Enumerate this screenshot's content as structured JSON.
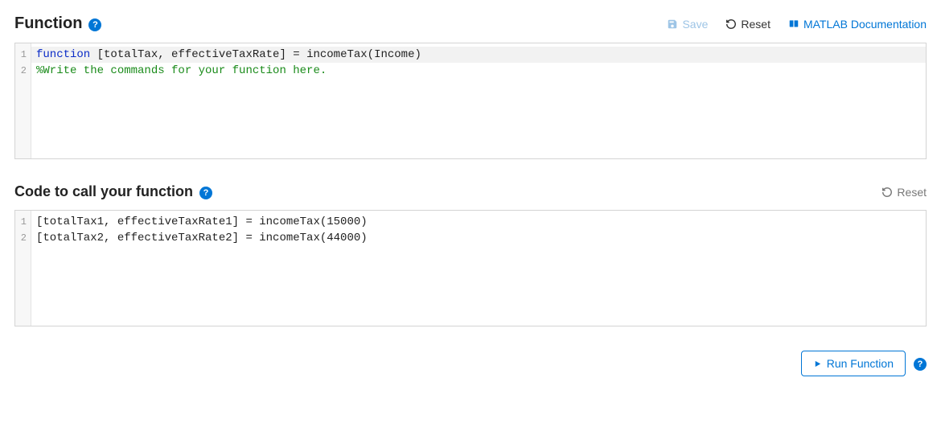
{
  "colors": {
    "link": "#0076d6",
    "mutedLink": "#9ec5e6",
    "textMuted": "#777777",
    "border": "#d4d4d4",
    "gutterBg": "#f7f7f7",
    "activeLine": "#f2f2f2",
    "keyword": "#0b2cc7",
    "comment": "#1a8b1a",
    "plain": "#222222"
  },
  "function_section": {
    "title": "Function",
    "toolbar": {
      "save_label": "Save",
      "reset_label": "Reset",
      "docs_label": "MATLAB Documentation"
    },
    "editor": {
      "line_numbers": [
        "1",
        "2"
      ],
      "lines": [
        {
          "tokens": [
            {
              "cls": "kw",
              "text": "function "
            },
            {
              "cls": "plain",
              "text": "[totalTax, effectiveTaxRate] = incomeTax(Income)"
            }
          ],
          "active": true
        },
        {
          "tokens": [
            {
              "cls": "comment",
              "text": "%Write the commands for your function here."
            }
          ],
          "active": false
        }
      ]
    }
  },
  "caller_section": {
    "title": "Code to call your function",
    "toolbar": {
      "reset_label": "Reset"
    },
    "editor": {
      "line_numbers": [
        "1",
        "2"
      ],
      "lines": [
        {
          "tokens": [
            {
              "cls": "plain",
              "text": "[totalTax1, effectiveTaxRate1] = incomeTax(15000)"
            }
          ],
          "active": false
        },
        {
          "tokens": [
            {
              "cls": "plain",
              "text": "[totalTax2, effectiveTaxRate2] = incomeTax(44000)"
            }
          ],
          "active": false
        }
      ]
    }
  },
  "footer": {
    "run_label": "Run Function"
  }
}
